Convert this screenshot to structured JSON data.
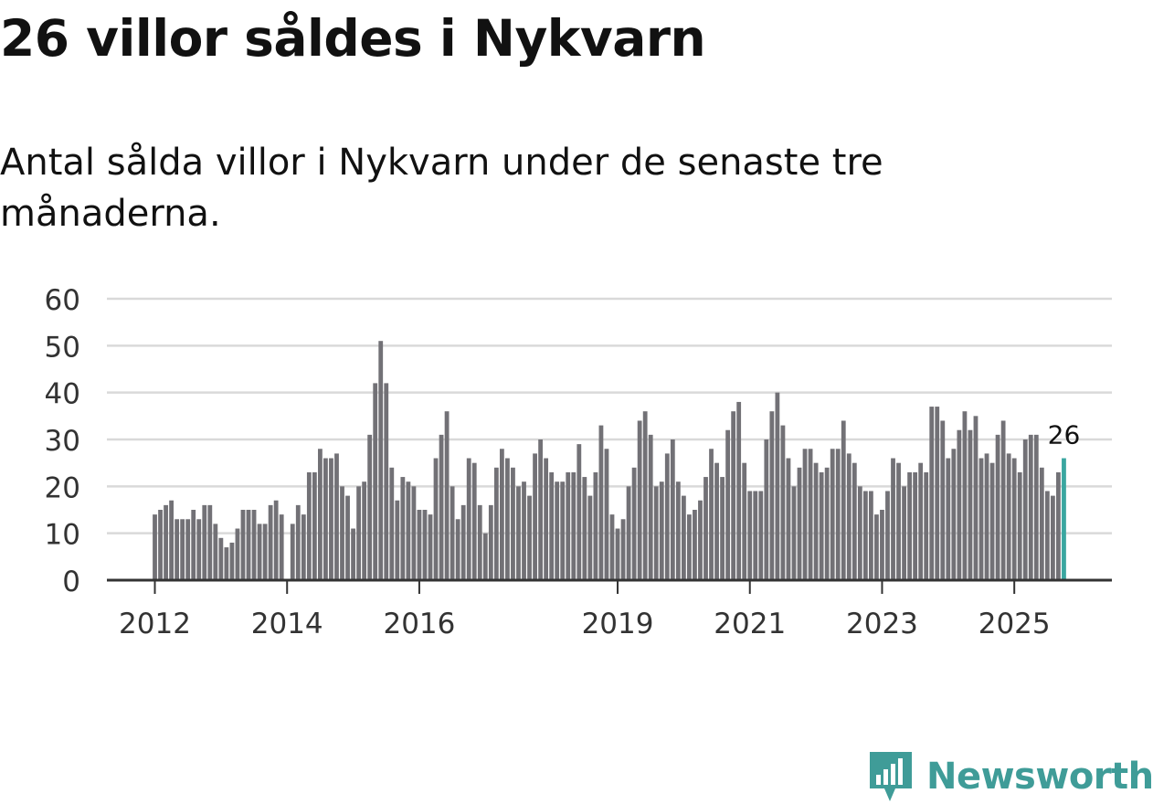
{
  "header": {
    "title": "26 villor såldes i Nykvarn",
    "subtitle": "Antal sålda villor i Nykvarn under de senaste tre månaderna."
  },
  "brand": {
    "name": "Newsworthy",
    "color": "#3f9c98",
    "icon": "newsworthy-logo-icon"
  },
  "colors": {
    "bar": "#727176",
    "highlight": "#3aa6a0",
    "grid": "#d9d9d9",
    "axis": "#333333"
  },
  "chart_data": {
    "type": "bar",
    "title": "26 villor såldes i Nykvarn",
    "subtitle": "Antal sålda villor i Nykvarn under de senaste tre månaderna.",
    "xlabel": "",
    "ylabel": "",
    "ylim": [
      0,
      60
    ],
    "yticks": [
      0,
      10,
      20,
      30,
      40,
      50,
      60
    ],
    "grid": true,
    "start": "2012-01",
    "frequency": "monthly",
    "xtick_labels": [
      {
        "label": "2012",
        "index": 0
      },
      {
        "label": "2014",
        "index": 24
      },
      {
        "label": "2016",
        "index": 48
      },
      {
        "label": "2019",
        "index": 84
      },
      {
        "label": "2021",
        "index": 108
      },
      {
        "label": "2023",
        "index": 132
      },
      {
        "label": "2025",
        "index": 156
      }
    ],
    "highlight": {
      "index": 165,
      "label": "26"
    },
    "values": [
      14,
      15,
      16,
      17,
      13,
      13,
      13,
      15,
      13,
      16,
      16,
      12,
      9,
      7,
      8,
      11,
      15,
      15,
      15,
      12,
      12,
      16,
      17,
      14,
      0,
      12,
      16,
      14,
      23,
      23,
      28,
      26,
      26,
      27,
      20,
      18,
      11,
      20,
      21,
      31,
      42,
      51,
      42,
      24,
      17,
      22,
      21,
      20,
      15,
      15,
      14,
      26,
      31,
      36,
      20,
      13,
      16,
      26,
      25,
      16,
      10,
      16,
      24,
      28,
      26,
      24,
      20,
      21,
      18,
      27,
      30,
      26,
      23,
      21,
      21,
      23,
      23,
      29,
      22,
      18,
      23,
      33,
      28,
      14,
      11,
      13,
      20,
      24,
      34,
      36,
      31,
      20,
      21,
      27,
      30,
      21,
      18,
      14,
      15,
      17,
      22,
      28,
      25,
      22,
      32,
      36,
      38,
      25,
      19,
      19,
      19,
      30,
      36,
      40,
      33,
      26,
      20,
      24,
      28,
      28,
      25,
      23,
      24,
      28,
      28,
      34,
      27,
      25,
      20,
      19,
      19,
      14,
      15,
      19,
      26,
      25,
      20,
      23,
      23,
      25,
      23,
      37,
      37,
      34,
      26,
      28,
      32,
      36,
      32,
      35,
      26,
      27,
      25,
      31,
      34,
      27,
      26,
      23,
      30,
      31,
      31,
      24,
      19,
      18,
      23,
      26
    ]
  }
}
